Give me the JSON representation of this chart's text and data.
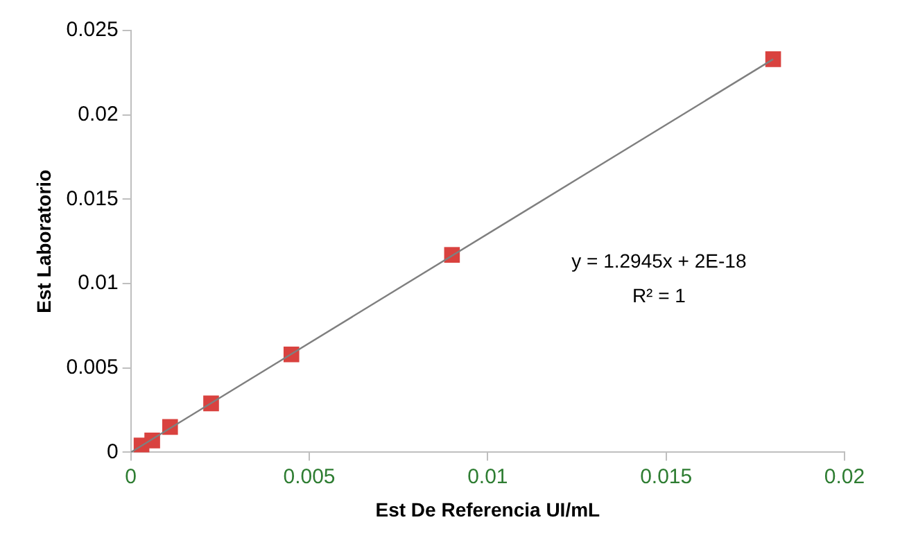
{
  "chart_data": {
    "type": "scatter",
    "xlabel": "Est De Referencia UI/mL",
    "ylabel": "Est Laboratorio",
    "xlim": [
      0,
      0.02
    ],
    "xticks": [
      0,
      0.005,
      0.01,
      0.015,
      0.02
    ],
    "ylim": [
      0,
      0.025
    ],
    "yticks": [
      0,
      0.005,
      0.01,
      0.015,
      0.02,
      0.025
    ],
    "grid": false,
    "legend": false,
    "marker": "square",
    "series": [
      {
        "type": "scatter",
        "color": "#d9423f",
        "x": [
          0.0003,
          0.0006,
          0.0011,
          0.00225,
          0.0045,
          0.009,
          0.018
        ],
        "values": [
          0.0004,
          0.0007,
          0.0015,
          0.0029,
          0.0058,
          0.0117,
          0.0233
        ]
      },
      {
        "type": "line",
        "color": "#7f7f7f",
        "marker": "none",
        "line_style": "solid",
        "x": [
          0,
          0.018
        ],
        "values": [
          0,
          0.0233
        ]
      }
    ],
    "annotations": [
      "y = 1.2945x + 2E-18",
      "R² = 1"
    ]
  }
}
